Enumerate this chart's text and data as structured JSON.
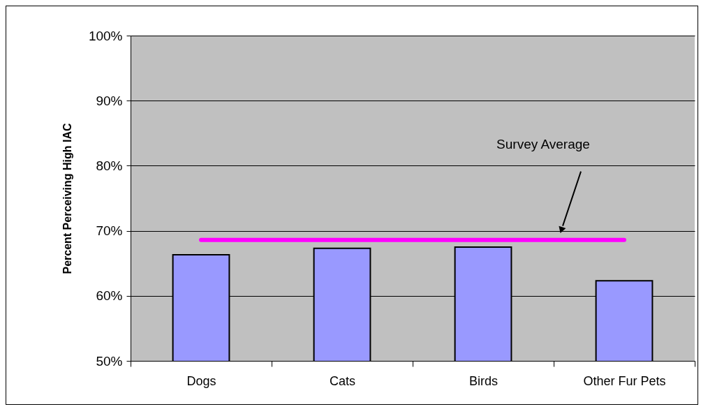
{
  "chart_data": {
    "type": "bar",
    "ylabel": "Percent Perceiving High IAC",
    "categories": [
      "Dogs",
      "Cats",
      "Birds",
      "Other Fur Pets"
    ],
    "values": [
      66.3,
      67.3,
      67.5,
      62.3
    ],
    "color": "#9999ff",
    "ylim": [
      50,
      100
    ],
    "yticks": [
      {
        "value": 50,
        "label": "50%"
      },
      {
        "value": 60,
        "label": "60%"
      },
      {
        "value": 70,
        "label": "70%"
      },
      {
        "value": 80,
        "label": "80%"
      },
      {
        "value": 90,
        "label": "90%"
      },
      {
        "value": 100,
        "label": "100%"
      }
    ],
    "grid": "y",
    "ref_lines": [
      {
        "axis": "y",
        "value": 68.6,
        "color": "#ff00ff"
      }
    ],
    "annotations": [
      "Survey Average"
    ]
  }
}
